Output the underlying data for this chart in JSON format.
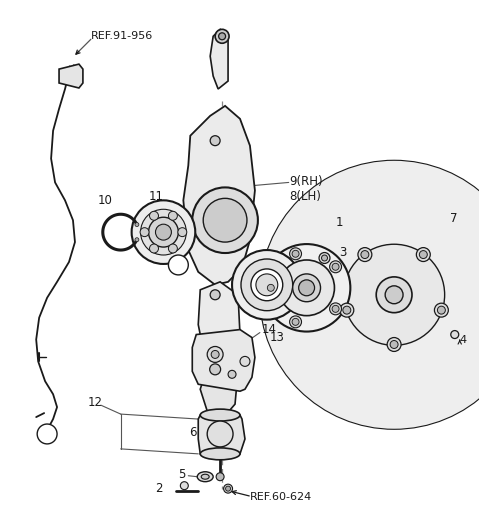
{
  "bg_color": "#ffffff",
  "line_color": "#1a1a1a",
  "text_color": "#1a1a1a",
  "gray_fill": "#f0f0f0",
  "dark_gray": "#555555",
  "labels": {
    "ref_91_956": "REF.91-956",
    "ref_60_624": "REF.60-624",
    "part_1": "1",
    "part_2": "2",
    "part_3": "3",
    "part_4": "4",
    "part_5": "5",
    "part_6": "6",
    "part_7": "7",
    "part_8_9": "9(RH)\n8(LH)",
    "part_10": "10",
    "part_11": "11",
    "part_12": "12",
    "part_13": "13",
    "part_14": "14"
  },
  "figsize": [
    4.8,
    5.14
  ],
  "dpi": 100
}
